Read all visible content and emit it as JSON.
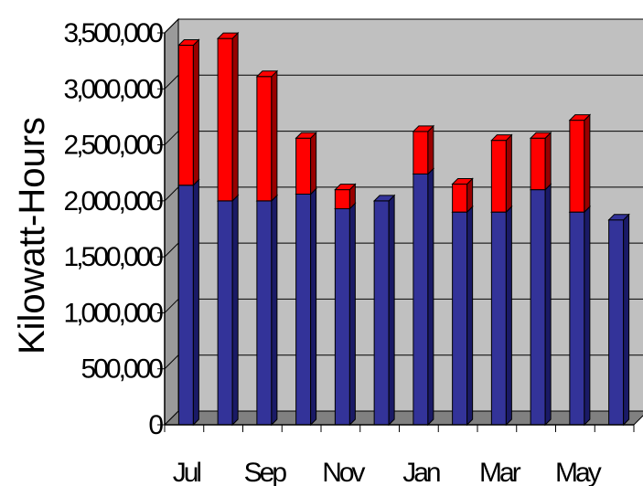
{
  "chart_data": {
    "type": "bar",
    "stacked": true,
    "three_d": true,
    "title": "",
    "xlabel": "",
    "ylabel": "Kilowatt-Hours",
    "ylim": [
      0,
      3500000
    ],
    "y_ticks": [
      0,
      500000,
      1000000,
      1500000,
      2000000,
      2500000,
      3000000,
      3500000
    ],
    "y_tick_labels": [
      "0",
      "500,000",
      "1,000,000",
      "1,500,000",
      "2,000,000",
      "2,500,000",
      "3,000,000",
      "3,500,000"
    ],
    "x_tick_labels": [
      "Jul",
      "Sep",
      "Nov",
      "Jan",
      "Mar",
      "May"
    ],
    "categories_count": 12,
    "grid": true,
    "legend": "none",
    "colors": {
      "base": "#333399",
      "top": "#ff0000",
      "wall": "#c0c0c0",
      "floor": "#808080",
      "gridline": "#000000"
    },
    "series": [
      {
        "values": [
          2140000,
          2000000,
          2000000,
          2060000,
          1930000,
          2000000,
          2240000,
          1900000,
          1900000,
          2100000,
          1900000,
          1830000
        ]
      },
      {
        "values": [
          1250000,
          1450000,
          1110000,
          500000,
          170000,
          0,
          380000,
          250000,
          640000,
          460000,
          820000,
          0
        ]
      }
    ]
  }
}
